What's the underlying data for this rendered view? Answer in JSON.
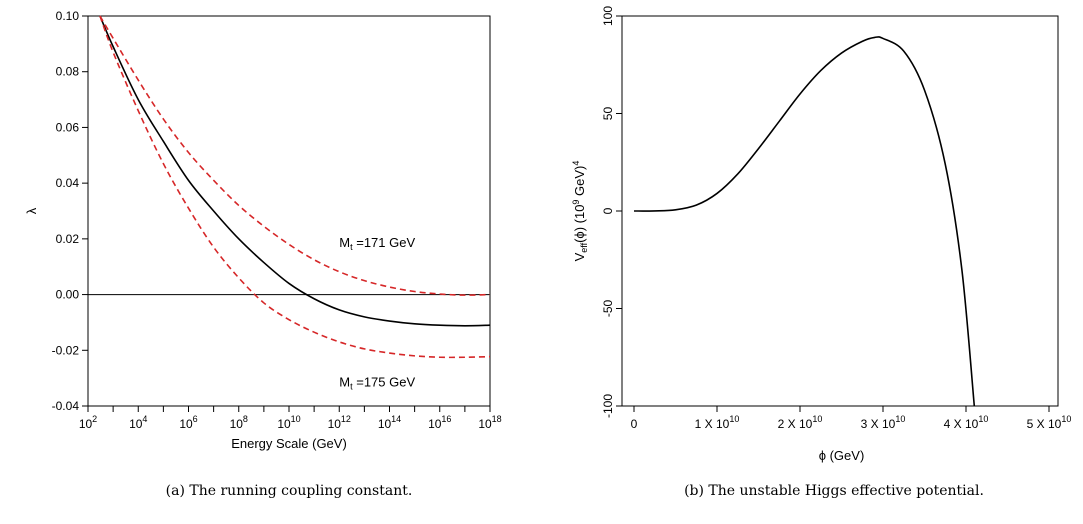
{
  "chart_data": [
    {
      "type": "line",
      "caption": "(a) The running coupling constant.",
      "xlabel": "Energy Scale (GeV)",
      "ylabel": "λ",
      "x_scale": "log",
      "xlim": [
        100,
        1e+18
      ],
      "ylim": [
        -0.04,
        0.1
      ],
      "x_tick_exponents": [
        "2",
        "4",
        "6",
        "8",
        "10",
        "12",
        "14",
        "16",
        "18"
      ],
      "y_ticks": [
        "0.10",
        "0.08",
        "0.06",
        "0.04",
        "0.02",
        "0.00",
        "-0.02",
        "-0.04"
      ],
      "reference_line_y": 0.0,
      "grid": false,
      "series": [
        {
          "color": "#000000",
          "dash": "solid",
          "x": [
            300,
            1000,
            10000.0,
            100000.0,
            1000000.0,
            10000000.0,
            100000000.0,
            1000000000.0,
            10000000000.0,
            100000000000.0,
            1000000000000.0,
            10000000000000.0,
            100000000000000.0,
            1000000000000000.0,
            1e+16,
            1e+17,
            1e+18
          ],
          "y": [
            0.1,
            0.089,
            0.07,
            0.055,
            0.041,
            0.03,
            0.02,
            0.0115,
            0.004,
            -0.0015,
            -0.0055,
            -0.008,
            -0.0095,
            -0.0105,
            -0.011,
            -0.0112,
            -0.011
          ]
        },
        {
          "name": "Mt =171 GeV",
          "color": "#d62728",
          "dash": "dashed",
          "x": [
            300,
            1000,
            10000.0,
            100000.0,
            1000000.0,
            10000000.0,
            100000000.0,
            1000000000.0,
            10000000000.0,
            100000000000.0,
            1000000000000.0,
            10000000000000.0,
            100000000000000.0,
            1000000000000000.0,
            1e+16,
            1e+17,
            1e+18
          ],
          "y": [
            0.1,
            0.092,
            0.077,
            0.063,
            0.051,
            0.041,
            0.032,
            0.0245,
            0.018,
            0.0125,
            0.0082,
            0.005,
            0.0027,
            0.0011,
            0.0002,
            -0.0002,
            0.0
          ]
        },
        {
          "name": "Mt =175 GeV",
          "color": "#d62728",
          "dash": "dashed",
          "x": [
            300,
            1000,
            10000.0,
            100000.0,
            1000000.0,
            10000000.0,
            100000000.0,
            1000000000.0,
            10000000000.0,
            100000000000.0,
            1000000000000.0,
            10000000000000.0,
            100000000000000.0,
            1000000000000000.0,
            1e+16,
            1e+17,
            1e+18
          ],
          "y": [
            0.1,
            0.087,
            0.066,
            0.047,
            0.031,
            0.017,
            0.006,
            -0.003,
            -0.009,
            -0.0135,
            -0.017,
            -0.0195,
            -0.021,
            -0.022,
            -0.0225,
            -0.0225,
            -0.0223
          ]
        }
      ],
      "annotations": [
        {
          "base": "M",
          "sub": "t",
          "text": " =171 GeV",
          "x": 1000000000000.0,
          "y": 0.017
        },
        {
          "base": "M",
          "sub": "t",
          "text": " =175 GeV",
          "x": 1000000000000.0,
          "y": -0.033
        }
      ]
    },
    {
      "type": "line",
      "caption": "(b) The unstable Higgs effective potential.",
      "xlabel": "ϕ (GeV)",
      "ylabel_parts": {
        "v": "V",
        "eff": "eff",
        "phi": "(ϕ) (10",
        "exp9": "9",
        "gev": " GeV)",
        "exp4": "4"
      },
      "xlim": [
        0,
        50000000000.0
      ],
      "ylim": [
        -100,
        100
      ],
      "x_ticks": [
        {
          "mantissa": "0",
          "exp": ""
        },
        {
          "mantissa": "1 X 10",
          "exp": "10"
        },
        {
          "mantissa": "2 X 10",
          "exp": "10"
        },
        {
          "mantissa": "3 X 10",
          "exp": "10"
        },
        {
          "mantissa": "4 X 10",
          "exp": "10"
        },
        {
          "mantissa": "5 X 10",
          "exp": "10"
        }
      ],
      "y_ticks": [
        "100",
        "50",
        "0",
        "-50",
        "-100"
      ],
      "grid": false,
      "series": [
        {
          "color": "#000000",
          "dash": "solid",
          "x": [
            0,
            2500000000.0,
            5000000000.0,
            7500000000.0,
            10000000000.0,
            12500000000.0,
            15000000000.0,
            17500000000.0,
            20000000000.0,
            22500000000.0,
            25000000000.0,
            27500000000.0,
            29000000000.0,
            30000000000.0,
            32500000000.0,
            35000000000.0,
            37500000000.0,
            39500000000.0,
            41000000000.0
          ],
          "y": [
            0,
            0.05,
            0.6,
            3,
            9,
            19,
            32,
            46,
            60,
            72,
            81,
            87,
            89,
            88.5,
            82,
            62,
            24,
            -30,
            -100
          ]
        }
      ]
    }
  ]
}
